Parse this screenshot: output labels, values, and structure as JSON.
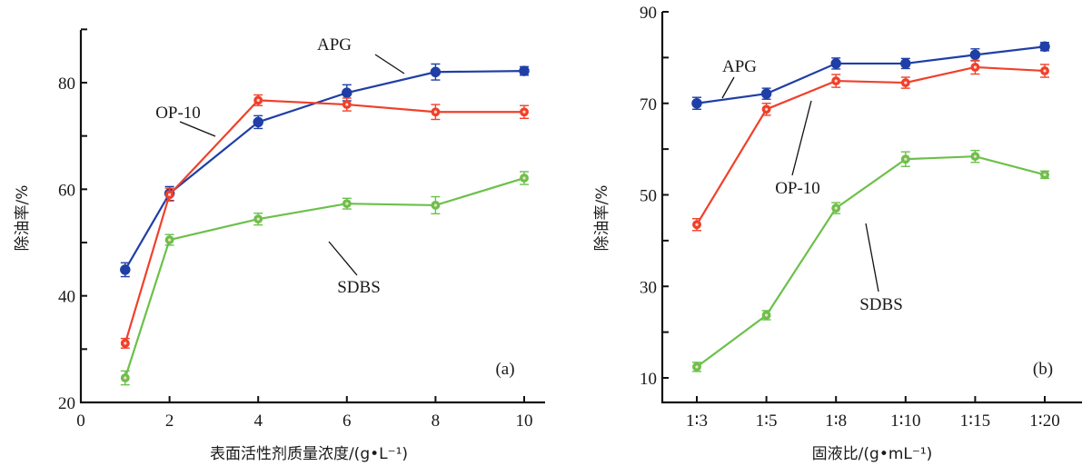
{
  "chart_data": [
    {
      "type": "line",
      "panel_label": "(a)",
      "xlabel": "表面活性剂质量浓度/(g•L⁻¹)",
      "ylabel": "除油率/%",
      "x": [
        1,
        2,
        4,
        6,
        8,
        10
      ],
      "xlim": [
        0,
        10
      ],
      "ylim": [
        20,
        90
      ],
      "xticks": [
        0,
        2,
        4,
        6,
        8,
        10
      ],
      "xtick_labels": [
        "0",
        "2",
        "4",
        "6",
        "8",
        "10"
      ],
      "yticks": [
        20,
        30,
        40,
        50,
        60,
        70,
        80,
        90
      ],
      "ytick_labels": [
        "20",
        "",
        "40",
        "",
        "60",
        "",
        "80",
        ""
      ],
      "grid": false,
      "error_bars": true,
      "series": [
        {
          "name": "APG",
          "color": "#1f3fa6",
          "marker": "filled-circle",
          "values": [
            44.9,
            59.2,
            72.6,
            78.1,
            82.0,
            82.2
          ],
          "errors": [
            1.3,
            1.3,
            1.2,
            1.5,
            1.5,
            0.8
          ]
        },
        {
          "name": "OP-10",
          "color": "#f0402a",
          "marker": "open-circle",
          "values": [
            31.1,
            59.0,
            76.7,
            75.9,
            74.5,
            74.5
          ],
          "errors": [
            0.9,
            1.2,
            1.0,
            1.2,
            1.4,
            1.2
          ]
        },
        {
          "name": "SDBS",
          "color": "#6cc04a",
          "marker": "open-circle",
          "values": [
            24.6,
            50.5,
            54.4,
            57.3,
            57.0,
            62.1
          ],
          "errors": [
            1.3,
            1.0,
            1.1,
            1.0,
            1.6,
            1.2
          ]
        }
      ],
      "annotations": [
        {
          "text": "APG",
          "series": "APG"
        },
        {
          "text": "OP-10",
          "series": "OP-10"
        },
        {
          "text": "SDBS",
          "series": "SDBS"
        }
      ]
    },
    {
      "type": "line",
      "panel_label": "(b)",
      "xlabel": "固液比/(g•mL⁻¹)",
      "ylabel": "除油率/%",
      "categories": [
        "1∶3",
        "1∶5",
        "1∶8",
        "1∶10",
        "1∶15",
        "1∶20"
      ],
      "ylim": [
        5,
        90
      ],
      "yticks": [
        10,
        20,
        30,
        40,
        50,
        60,
        70,
        80,
        90
      ],
      "ytick_labels": [
        "10",
        "",
        "30",
        "",
        "50",
        "",
        "70",
        "",
        "90"
      ],
      "grid": false,
      "error_bars": true,
      "series": [
        {
          "name": "APG",
          "color": "#1f3fa6",
          "marker": "filled-circle",
          "values": [
            70.0,
            72.1,
            78.7,
            78.7,
            80.6,
            82.4
          ],
          "errors": [
            1.3,
            1.2,
            1.2,
            1.1,
            1.3,
            0.9
          ]
        },
        {
          "name": "OP-10",
          "color": "#f0402a",
          "marker": "open-circle",
          "values": [
            43.5,
            68.7,
            74.9,
            74.5,
            77.9,
            77.1
          ],
          "errors": [
            1.3,
            1.3,
            1.4,
            1.2,
            1.5,
            1.4
          ]
        },
        {
          "name": "SDBS",
          "color": "#6cc04a",
          "marker": "open-circle",
          "values": [
            12.4,
            23.7,
            47.1,
            57.8,
            58.4,
            54.4
          ],
          "errors": [
            1.0,
            1.0,
            1.2,
            1.6,
            1.3,
            0.8
          ]
        }
      ],
      "annotations": [
        {
          "text": "APG",
          "series": "APG"
        },
        {
          "text": "OP-10",
          "series": "OP-10"
        },
        {
          "text": "SDBS",
          "series": "SDBS"
        }
      ]
    }
  ]
}
